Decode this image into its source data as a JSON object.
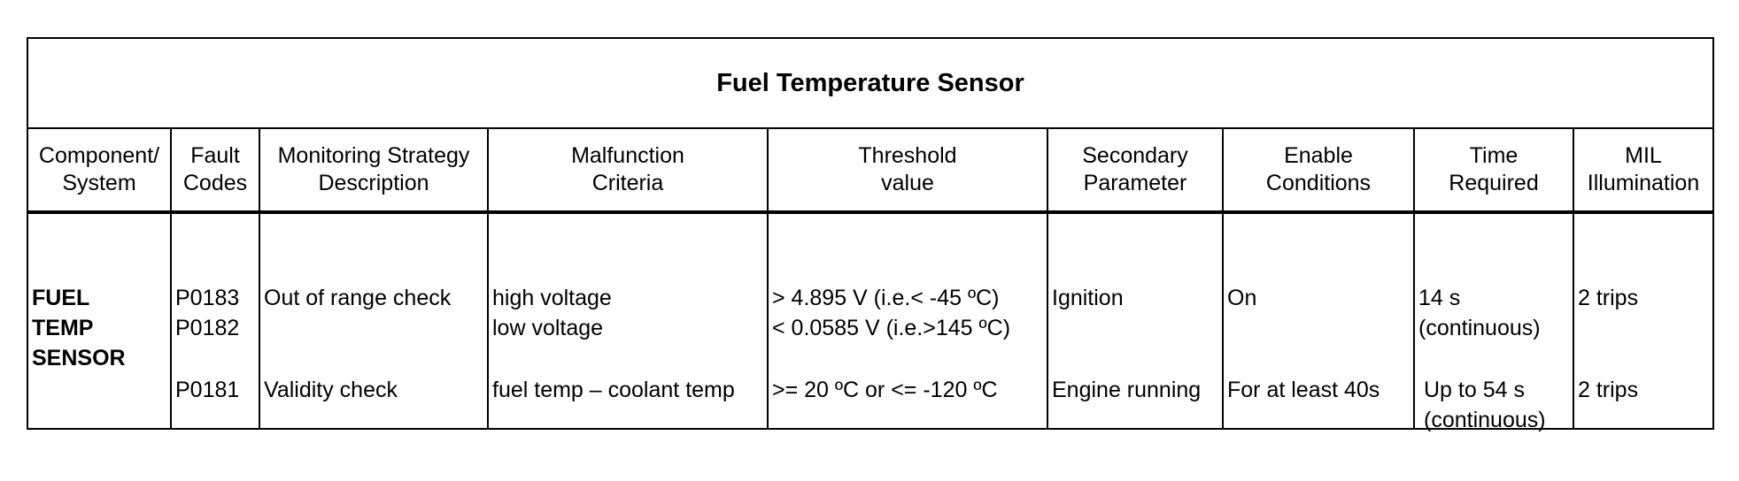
{
  "title": "Fuel Temperature Sensor",
  "headers": [
    {
      "line1": "Component/",
      "line2": "System"
    },
    {
      "line1": "Fault",
      "line2": "Codes"
    },
    {
      "line1": "Monitoring Strategy",
      "line2": "Description"
    },
    {
      "line1": "Malfunction",
      "line2": "Criteria"
    },
    {
      "line1": "Threshold",
      "line2": "value"
    },
    {
      "line1": "Secondary",
      "line2": "Parameter"
    },
    {
      "line1": "Enable",
      "line2": "Conditions"
    },
    {
      "line1": "Time",
      "line2": "Required"
    },
    {
      "line1": "MIL",
      "line2": "Illumination"
    }
  ],
  "component": [
    "FUEL",
    "TEMP",
    "SENSOR"
  ],
  "rows": [
    {
      "codes": [
        "P0183",
        "P0182"
      ],
      "strategy": "Out of range check",
      "criteria": [
        "high voltage",
        "low voltage"
      ],
      "threshold": [
        "> 4.895 V (i.e.< -45 ºC)",
        "< 0.0585 V (i.e.>145 ºC)"
      ],
      "secondary": "Ignition",
      "enable": "On",
      "time": [
        "14 s",
        "(continuous)"
      ],
      "mil": "2 trips"
    },
    {
      "codes": [
        "P0181"
      ],
      "strategy": "Validity check",
      "criteria": [
        "fuel temp – coolant temp"
      ],
      "threshold": [
        ">= 20 ºC or <= -120 ºC"
      ],
      "secondary": "Engine running",
      "enable": "For at least 40s",
      "time": [
        "Up to 54 s",
        "(continuous)"
      ],
      "mil": "2 trips"
    }
  ]
}
